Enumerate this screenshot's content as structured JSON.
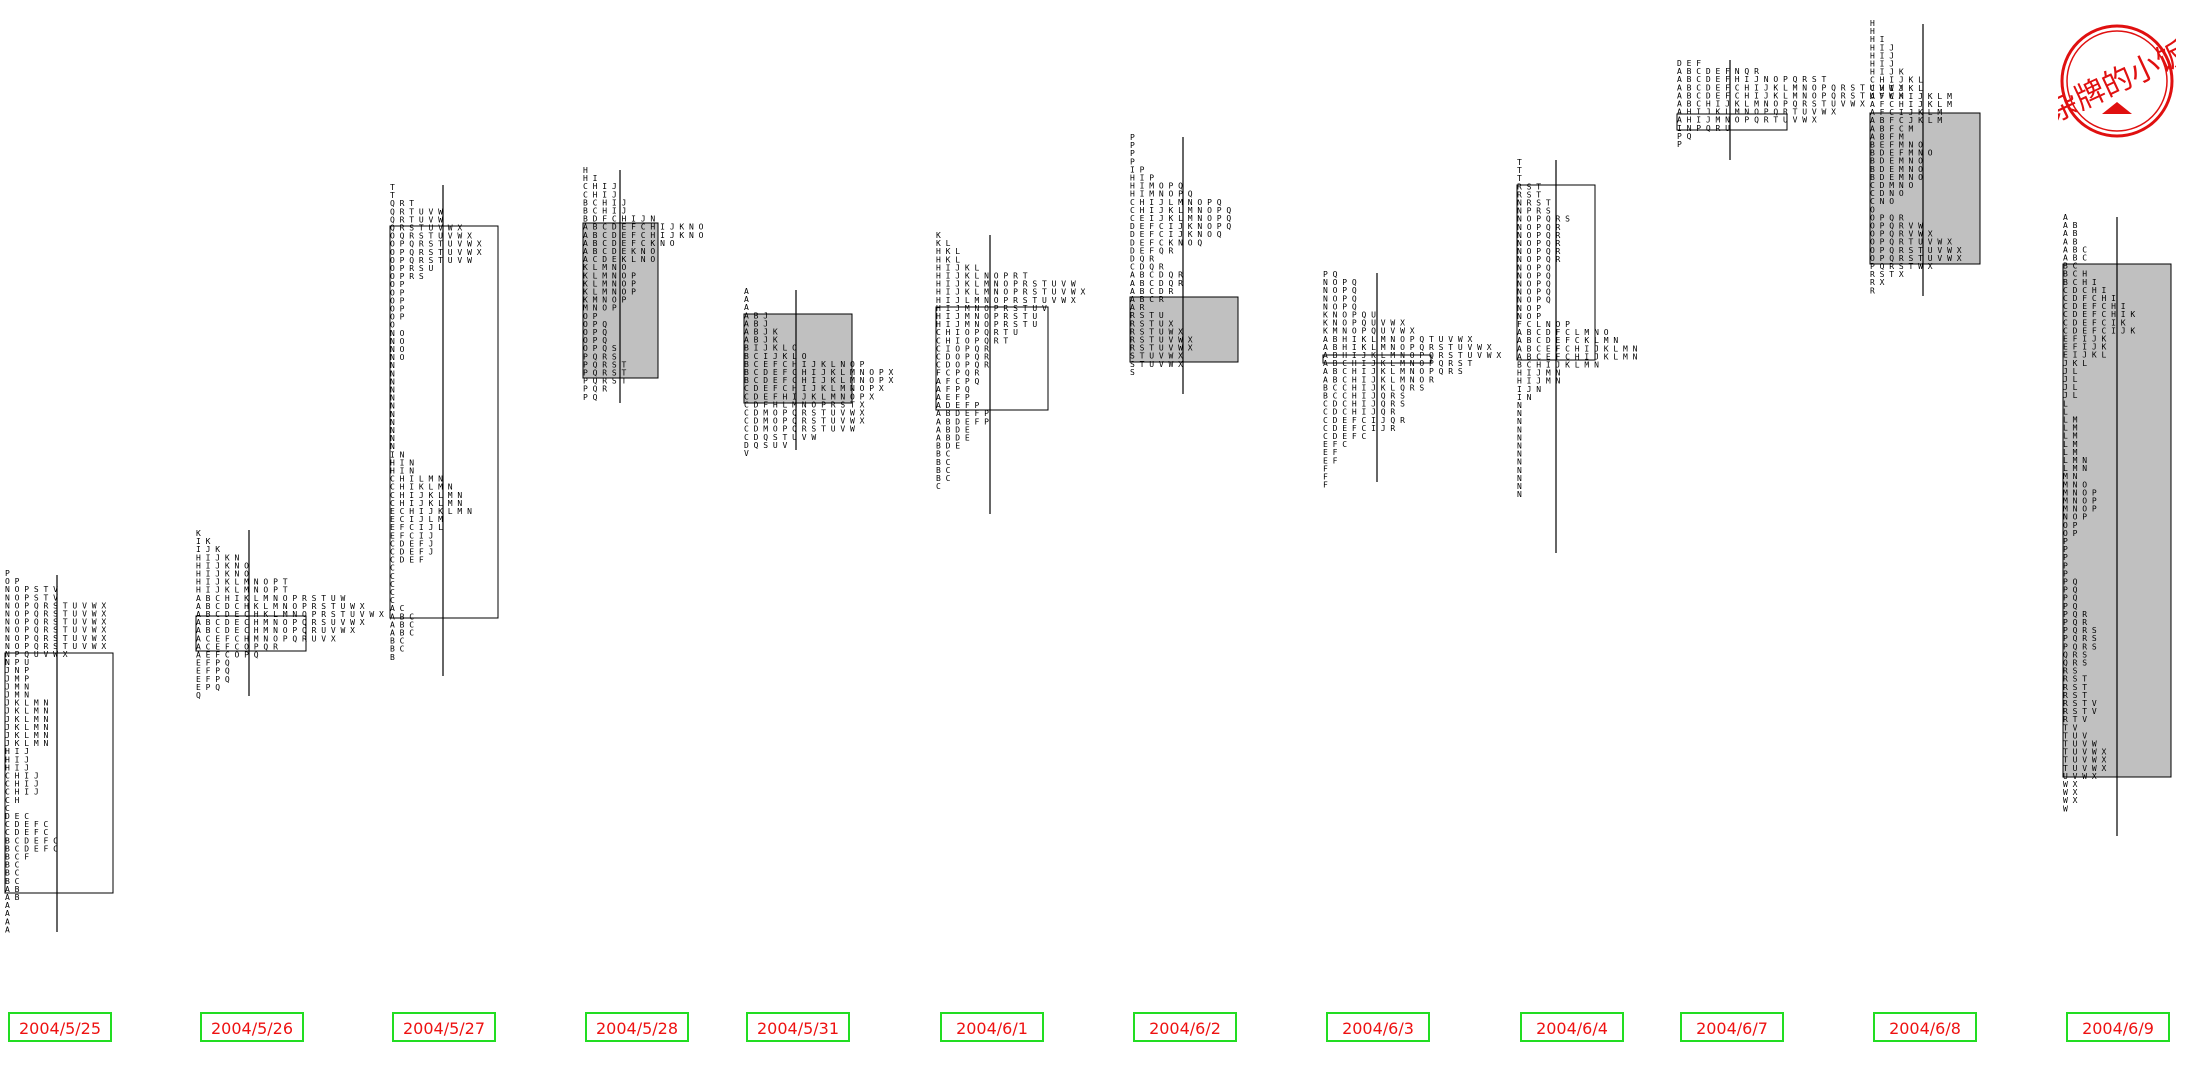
{
  "seal": {
    "text": "杂牌的小饭"
  },
  "chart_data": {
    "type": "market-profile",
    "title": "",
    "xlabel": "",
    "ylabel": "",
    "days": [
      {
        "date": "2004/5/25",
        "tpo": [
          "P",
          "OP",
          "NOPSTV",
          "NOPSTV",
          "NOPQRSTUVWX",
          "NOPQRSTUVWX",
          "NOPQRSTUVWX",
          "NOPQRSTUVWX",
          "NOPQRSTUVWX",
          "NOPQRSTUVWX",
          "NPQUVWX",
          "NPU",
          "JNP",
          "JMP",
          "JMN",
          "JMN",
          "JKLMN",
          "JKLMN",
          "JKLMN",
          "JKLMN",
          "JKLMN",
          "JKLMN",
          "HIJ",
          "HIJ",
          "HIJ",
          "CHIJ",
          "CHIJ",
          "CHIJ",
          "CH",
          "C",
          "DEC",
          "CDEFC",
          "CDEFC",
          "BCDEFC",
          "BCDEFC",
          "BCF",
          "BC",
          "BC",
          "BC",
          "AB",
          "AB",
          "A",
          "A",
          "A",
          "A"
        ]
      },
      {
        "date": "2004/5/26",
        "tpo": [
          "K",
          "IK",
          "IJK",
          "HIJKN",
          "HIJKNO",
          "HIJKNO",
          "HIJKLMNOPT",
          "HIJKLMNOPT",
          "ABCHIKLMNOPRSTUW",
          "ABCDCHKLMNOPRSTUWX",
          "ABCDECHKLMNOPRSTUVWX",
          "ABCDECHMNOPQRSUVWX",
          "ABCDECHMNOPQRUVWX",
          "ACEFCHMNOPQRUVX",
          "ACEFCOPQR",
          "AEFCOPQ",
          "EFPQ",
          "EFPQ",
          "EFPQ",
          "EPQ",
          "Q"
        ]
      },
      {
        "date": "2004/5/27",
        "tpo": [
          "T",
          "T",
          "QRT",
          "QRTUVW",
          "QRTUVW",
          "QRSTUVWX",
          "OQRSTUVWX",
          "OPQRSTUVWX",
          "OPQRSTUVWX",
          "OPQRSTUVW",
          "OPRSU",
          "OPRS",
          "OP",
          "OP",
          "OP",
          "OP",
          "OP",
          "O",
          "NO",
          "NO",
          "NO",
          "NO",
          "N",
          "N",
          "N",
          "N",
          "N",
          "N",
          "N",
          "N",
          "N",
          "N",
          "N",
          "IN",
          "HIN",
          "HIN",
          "CHILMN",
          "CHIKLMN",
          "CHIJKLMN",
          "CHIJKLMN",
          "ECHIJKLMN",
          "ECIJLM",
          "EFCIJL",
          "EFCIJ",
          "CDEFJ",
          "CDEFJ",
          "CDEF",
          "C",
          "C",
          "C",
          "C",
          "C",
          "AC",
          "ABC",
          "ABC",
          "ABC",
          "BC",
          "BC",
          "B"
        ]
      },
      {
        "date": "2004/5/28",
        "tpo": [
          "H",
          "HI",
          "CHIJ",
          "CHIJ",
          "BCHIJ",
          "BCHIJ",
          "BDFCHIJN",
          "ABCDEFCHIJKNO",
          "ABCDEFCHIJKNO",
          "ABCDEFCKNO",
          "ABCDEKNO",
          "ACDEKLNO",
          "KLMNO",
          "KLMNOP",
          "KLMNOP",
          "KLMNOP",
          "KMNOP",
          "MNOP",
          "OP",
          "OPQ",
          "OPQ",
          "OPQ",
          "OPQS",
          "PQRS",
          "PQRST",
          "PQRST",
          "PQRST",
          "PQR",
          "PQ"
        ]
      },
      {
        "date": "2004/5/31",
        "tpo": [
          "A",
          "A",
          "A",
          "ABJ",
          "ABJ",
          "ABJK",
          "ABJK",
          "BIJKLO",
          "BCIJKLO",
          "BCEFCHIJKLNOP",
          "BCDEFCHIJKLMNOPX",
          "BCDEFCHIJKLMNOPX",
          "CDEFCHIJKLMNOPX",
          "CDEFHIJKLMNOPX",
          "CDFHLMNOPRSTX",
          "CDMOPQRSTUVWX",
          "CDMOPQRSTUVWX",
          "CDMOPQRSTUVW",
          "CDQSTUVW",
          "DQSUV",
          "V"
        ]
      },
      {
        "date": "2004/6/1",
        "tpo": [
          "K",
          "KL",
          "HKL",
          "HKL",
          "HIJKL",
          "HIJKLNOPRT",
          "HIJKLMNOPRSTUVW",
          "HIJKLMNOPRSTUVWX",
          "HIJLMNOPRSTUVWX",
          "HIJMNOPRSTUV",
          "HIJMNOPRSTU",
          "HIJMNOPRSTU",
          "CHIOPQRTU",
          "CHIOPQRT",
          "CIOPQR",
          "CDOPQR",
          "CDOPQR",
          "FCPQR",
          "AFCPQ",
          "AFPQ",
          "AEFP",
          "ADEFP",
          "ABDEFP",
          "ABDEFP",
          "ABDE",
          "ABDE",
          "BDE",
          "BC",
          "BC",
          "BC",
          "BC",
          "C"
        ]
      },
      {
        "date": "2004/6/2",
        "tpo": [
          "P",
          "P",
          "P",
          "P",
          "IP",
          "HIP",
          "HIMOPQ",
          "HIMNOPQ",
          "CHIJLMNOPQ",
          "CHIJKLMNOPQ",
          "CEIJKLMNOPQ",
          "DEFCIJKNOPQ",
          "DEFCIJKNOQ",
          "DEFCKNOQ",
          "DEFQR",
          "DQR",
          "CDQR",
          "ABCDQR",
          "ABCDQR",
          "ABCDR",
          "ABCR",
          "AR",
          "RSTU",
          "RSTUX",
          "RSTUWX",
          "RSTUVWX",
          "RSTUVWX",
          "STUVWX",
          "STUVWX",
          "S"
        ]
      },
      {
        "date": "2004/6/3",
        "tpo": [
          "PQ",
          "NOPQ",
          "NOPQ",
          "NOPQ",
          "NOPQ",
          "KNOPQU",
          "KNOPQUVWX",
          "KMNOPQUVWX",
          "ABHIKLMNOPQTUVWX",
          "ABHIKLMNOPQRSTUVWX",
          "ABHIJKLMNOPQRSTUVWX",
          "ABCHIJKLMNOPQRST",
          "ABCHIJKLMNOPQRS",
          "ABCHIJKLMNOR",
          "BCCHIJKLQRS",
          "BCCHIJQRS",
          "CDCHIJQRS",
          "CDCHIJQR",
          "CDEFCIJQR",
          "CDEFCIJR",
          "CDEFC",
          "EFC",
          "EF",
          "EF",
          "F",
          "F",
          "F"
        ]
      },
      {
        "date": "2004/6/4",
        "tpo": [
          "T",
          "T",
          "T",
          "RST",
          "RST",
          "NRST",
          "NPRS",
          "NOPQRS",
          "NOPQR",
          "NOPQR",
          "NOPQR",
          "NOPQR",
          "NOPQR",
          "NOPQ",
          "NOPQ",
          "NOPQ",
          "NOPQ",
          "NOPQ",
          "NOP",
          "NOP",
          "FCLNOP",
          "ABCDFCLMNO",
          "ABCDEFCKLMN",
          "ABCEFCHIJKLMN",
          "ABCEFCHIJKLMN",
          "BCHIJKLMN",
          "HIJMN",
          "HIJMN",
          "IJN",
          "IN",
          "N",
          "N",
          "N",
          "N",
          "N",
          "N",
          "N",
          "N",
          "N",
          "N",
          "N",
          "N"
        ]
      },
      {
        "date": "2004/6/7",
        "tpo": [
          "DEF",
          "ABCDEFNQR",
          "ABCDEFHIJNOPQRST",
          "ABCDEFCHIJKLMNOPQRSTUVWX",
          "ABCDEFCHIJKLMNOPQRSTUVWX",
          "ABCHIJKLMNOPQRSTUVWX",
          "AHIJKLMNOPQRTUVWX",
          "AHIJMNOPQRTUVWX",
          "INPQRU",
          "PQ",
          "P"
        ]
      },
      {
        "date": "2004/6/8",
        "tpo": [
          "H",
          "H",
          "HI",
          "HIJ",
          "HIJ",
          "HIJ",
          "HIJK",
          "CHIJKL",
          "CHIJKL",
          "AFCHIJKLM",
          "AFCHIJKLM",
          "AFCIJKLM",
          "ABFCJKLM",
          "ABFCM",
          "ABFM",
          "BEFMNO",
          "BDEFMNO",
          "BDEMNO",
          "BDEMNO",
          "BDEMNO",
          "CDMNO",
          "CDNO",
          "CNO",
          "O",
          "OPQR",
          "OPQRVW",
          "OPQRVWX",
          "OPQRTUVWX",
          "OPQRSTUVWX",
          "OPQRSTUVWX",
          "PQRSTWX",
          "RSTX",
          "RX",
          "R"
        ]
      },
      {
        "date": "2004/6/9",
        "tpo": [
          "A",
          "AB",
          "AB",
          "AB",
          "ABC",
          "ABC",
          "BC",
          "BCH",
          "BCHI",
          "CDCHI",
          "CDFCHI",
          "CDEFCHI",
          "CDEFCHIK",
          "CDEFCIK",
          "CDEFCIJK",
          "EFIJK",
          "EFIJK",
          "EIJKL",
          "JKL",
          "JL",
          "JL",
          "JL",
          "JL",
          "L",
          "L",
          "LM",
          "LM",
          "LM",
          "LM",
          "LM",
          "LMN",
          "LMN",
          "MN",
          "MNO",
          "MNOP",
          "MNOP",
          "MNOP",
          "NOP",
          "OP",
          "OP",
          "P",
          "P",
          "P",
          "P",
          "P",
          "PQ",
          "PQ",
          "PQ",
          "PQ",
          "PQR",
          "PQR",
          "PQRS",
          "PQRS",
          "PQRS",
          "QRS",
          "QRS",
          "RS",
          "RST",
          "RST",
          "RST",
          "RSTV",
          "RSTV",
          "RTV",
          "TV",
          "TUV",
          "TUVW",
          "TUVWX",
          "TUVWX",
          "TUVWX",
          "UVWX",
          "WX",
          "WX",
          "WX",
          "W"
        ]
      }
    ]
  }
}
